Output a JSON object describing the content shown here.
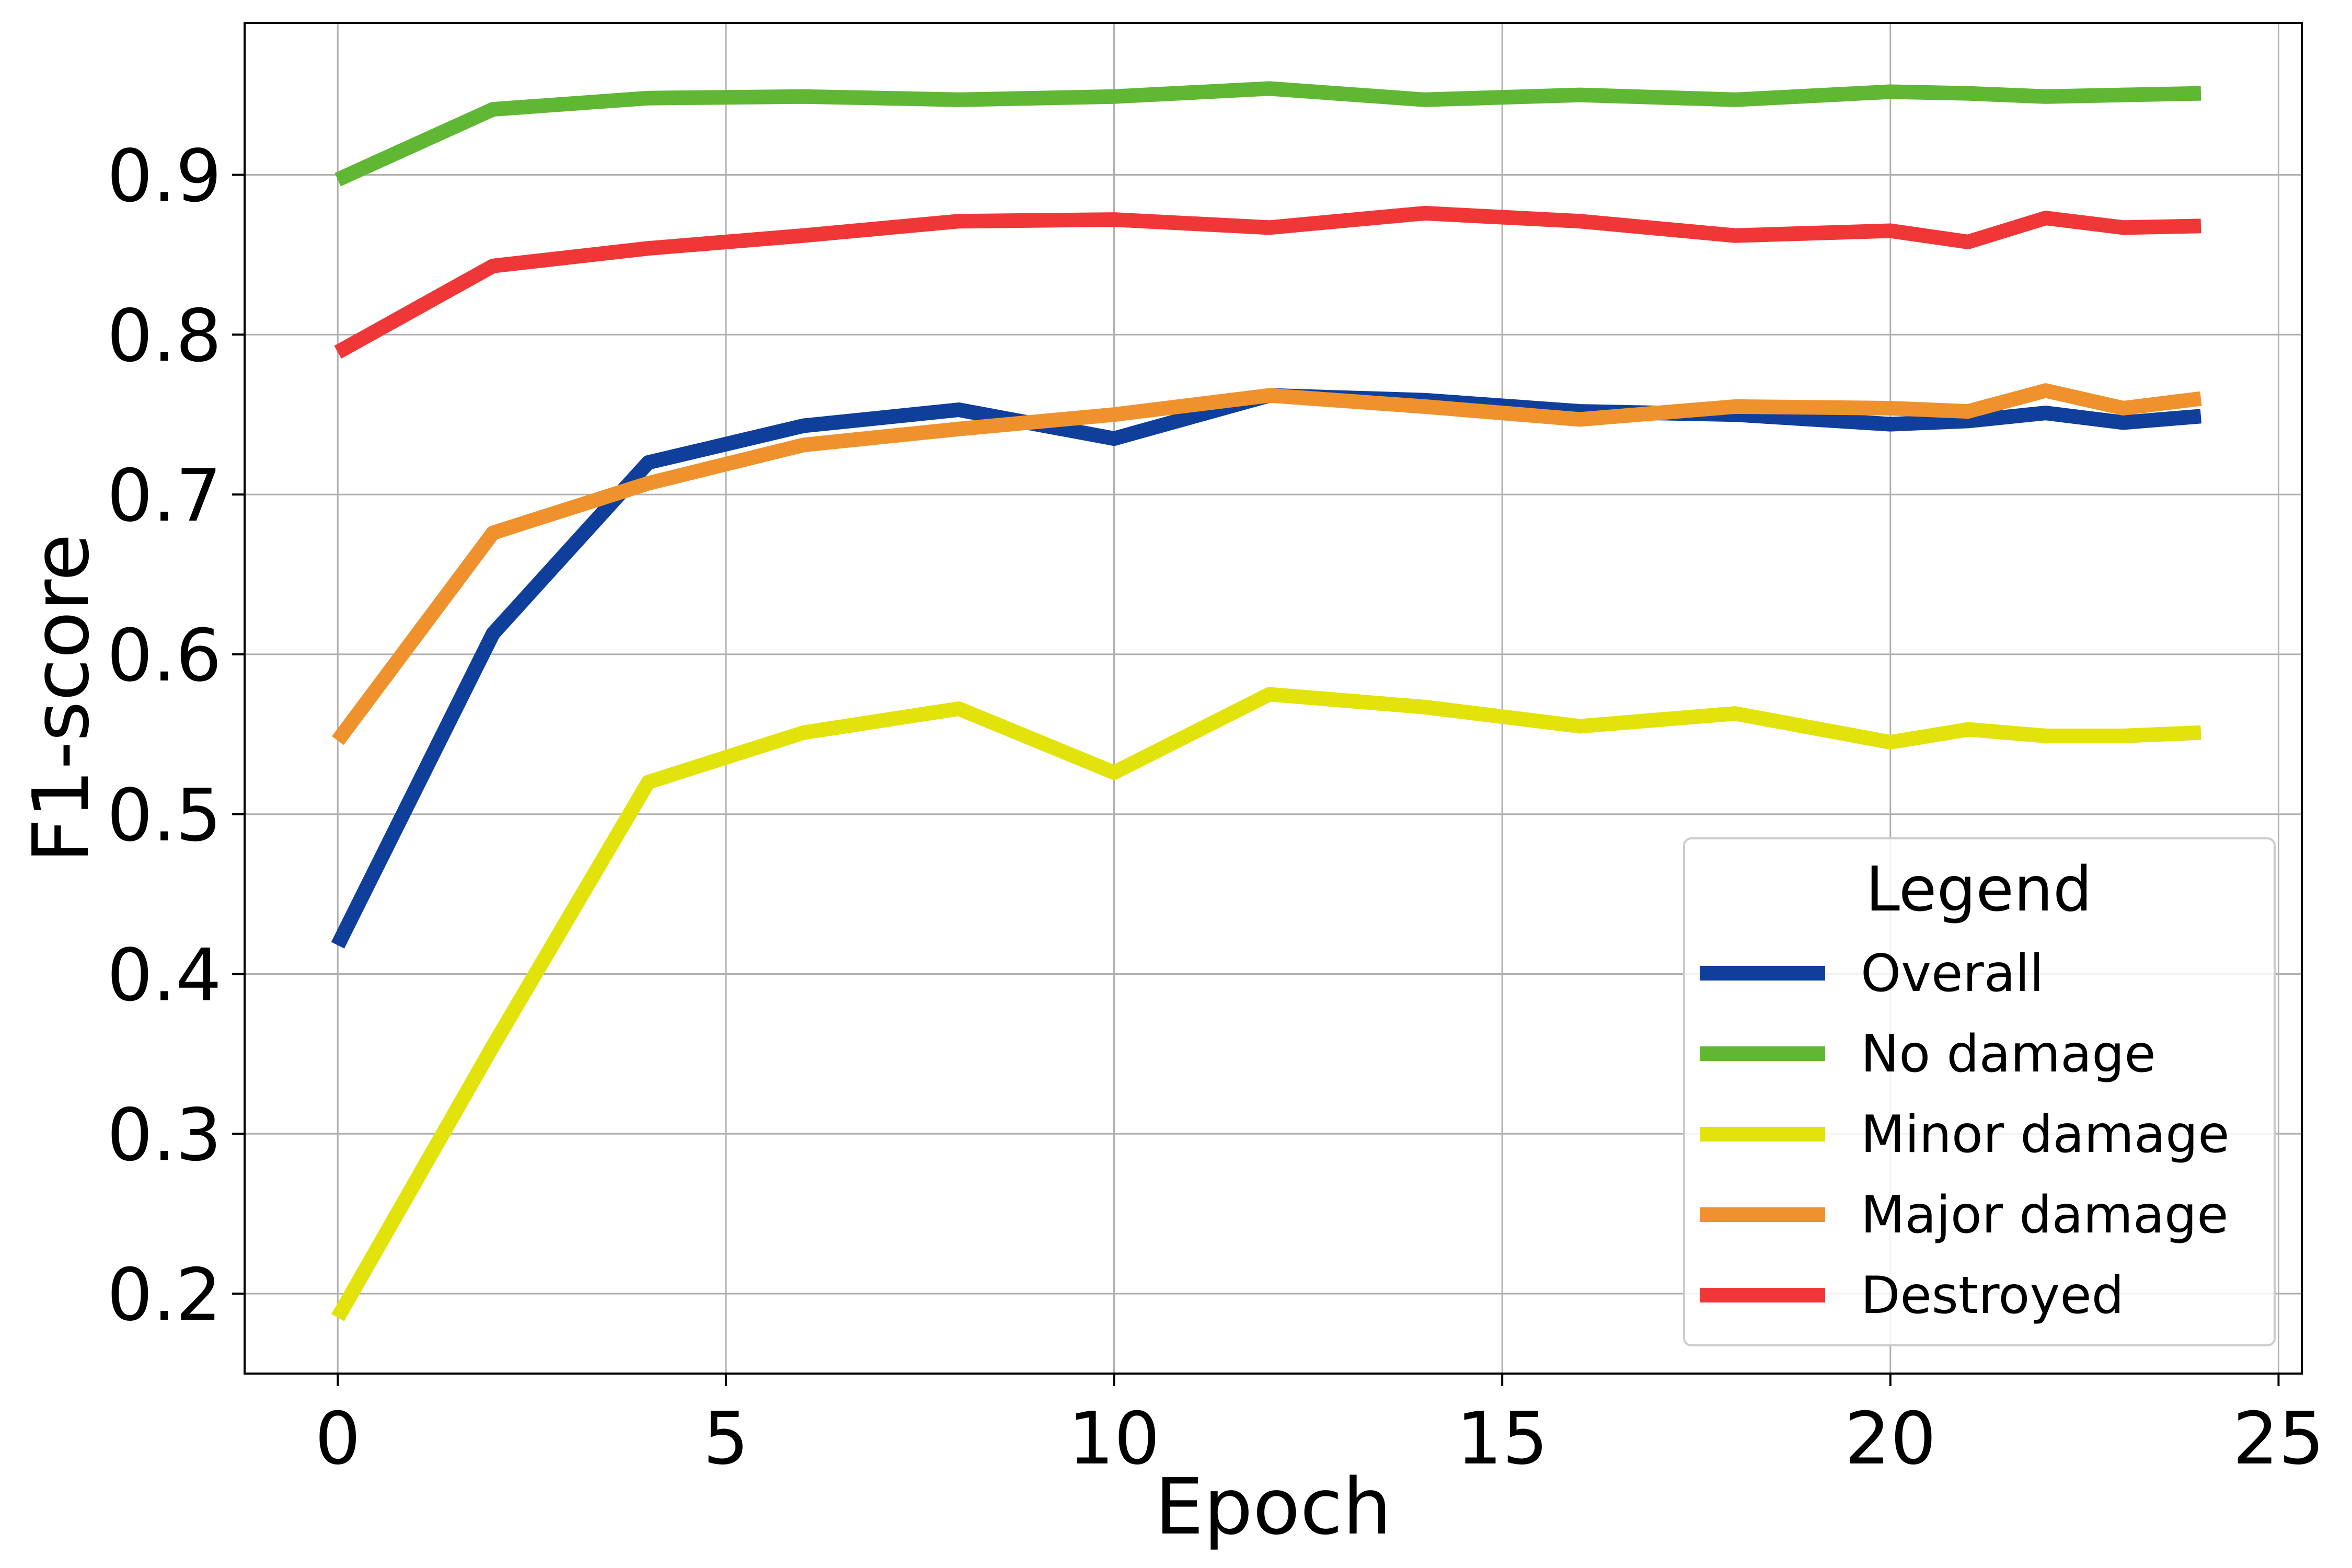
{
  "chart_data": {
    "type": "line",
    "title": "",
    "xlabel": "Epoch",
    "ylabel": "F1-score",
    "xlim": [
      -1.2,
      25.3
    ],
    "ylim": [
      0.15,
      0.995
    ],
    "xticks": [
      0,
      5,
      10,
      15,
      20,
      25
    ],
    "yticks": [
      0.2,
      0.3,
      0.4,
      0.5,
      0.6,
      0.7,
      0.8,
      0.9
    ],
    "xtick_labels": [
      "0",
      "5",
      "10",
      "15",
      "20",
      "25"
    ],
    "ytick_labels": [
      "0.2",
      "0.3",
      "0.4",
      "0.5",
      "0.6",
      "0.7",
      "0.8",
      "0.9"
    ],
    "grid": true,
    "legend": {
      "title": "Legend",
      "placement": "lower-right"
    },
    "x": [
      0,
      2,
      4,
      6,
      8,
      10,
      12,
      14,
      16,
      18,
      20,
      21,
      22,
      23,
      24
    ],
    "series": [
      {
        "name": "Overall",
        "color": "#0f3f9b",
        "values": [
          0.418,
          0.613,
          0.72,
          0.743,
          0.753,
          0.735,
          0.762,
          0.759,
          0.752,
          0.75,
          0.744,
          0.746,
          0.751,
          0.745,
          0.749
        ]
      },
      {
        "name": "No damage",
        "color": "#5fb734",
        "values": [
          0.897,
          0.941,
          0.948,
          0.949,
          0.947,
          0.949,
          0.954,
          0.947,
          0.95,
          0.947,
          0.952,
          0.951,
          0.949,
          0.95,
          0.951
        ]
      },
      {
        "name": "Minor damage",
        "color": "#e2e30a",
        "values": [
          0.185,
          0.355,
          0.52,
          0.551,
          0.566,
          0.526,
          0.575,
          0.567,
          0.555,
          0.563,
          0.545,
          0.553,
          0.549,
          0.549,
          0.551
        ]
      },
      {
        "name": "Major damage",
        "color": "#ef922d",
        "values": [
          0.546,
          0.676,
          0.707,
          0.731,
          0.741,
          0.75,
          0.762,
          0.755,
          0.747,
          0.755,
          0.754,
          0.752,
          0.765,
          0.754,
          0.76
        ]
      },
      {
        "name": "Destroyed",
        "color": "#f03737",
        "values": [
          0.789,
          0.843,
          0.854,
          0.862,
          0.871,
          0.872,
          0.867,
          0.876,
          0.871,
          0.862,
          0.865,
          0.858,
          0.873,
          0.867,
          0.868
        ]
      }
    ]
  }
}
